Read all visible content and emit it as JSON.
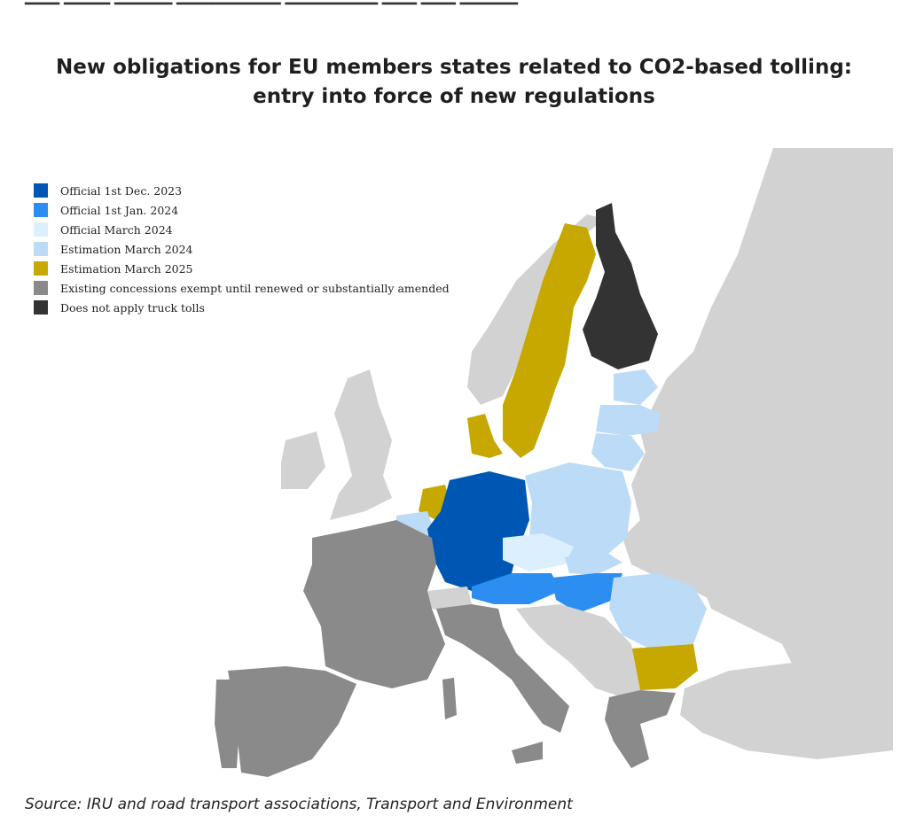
{
  "title_line1": "New obligations for EU members states related to CO2-based tolling:",
  "title_line2": "entry into force of new regulations",
  "legend": [
    {
      "label": "Official 1st Dec. 2023",
      "color": "#0057b3"
    },
    {
      "label": "Official 1st Jan. 2024",
      "color": "#2b8ef0"
    },
    {
      "label": "Official March 2024",
      "color": "#dcefff"
    },
    {
      "label": "Estimation March 2024",
      "color": "#bcdbf7"
    },
    {
      "label": "Estimation March 2025",
      "color": "#c7a800"
    },
    {
      "label": "Existing concessions exempt until renewed or substantially amended",
      "color": "#8a8a8a"
    },
    {
      "label": "Does not apply truck tolls",
      "color": "#333333"
    }
  ],
  "source": "Source: IRU and road transport associations, Transport and Environment",
  "colors": {
    "background_land": "#d2d2d2",
    "sea": "#ffffff"
  }
}
